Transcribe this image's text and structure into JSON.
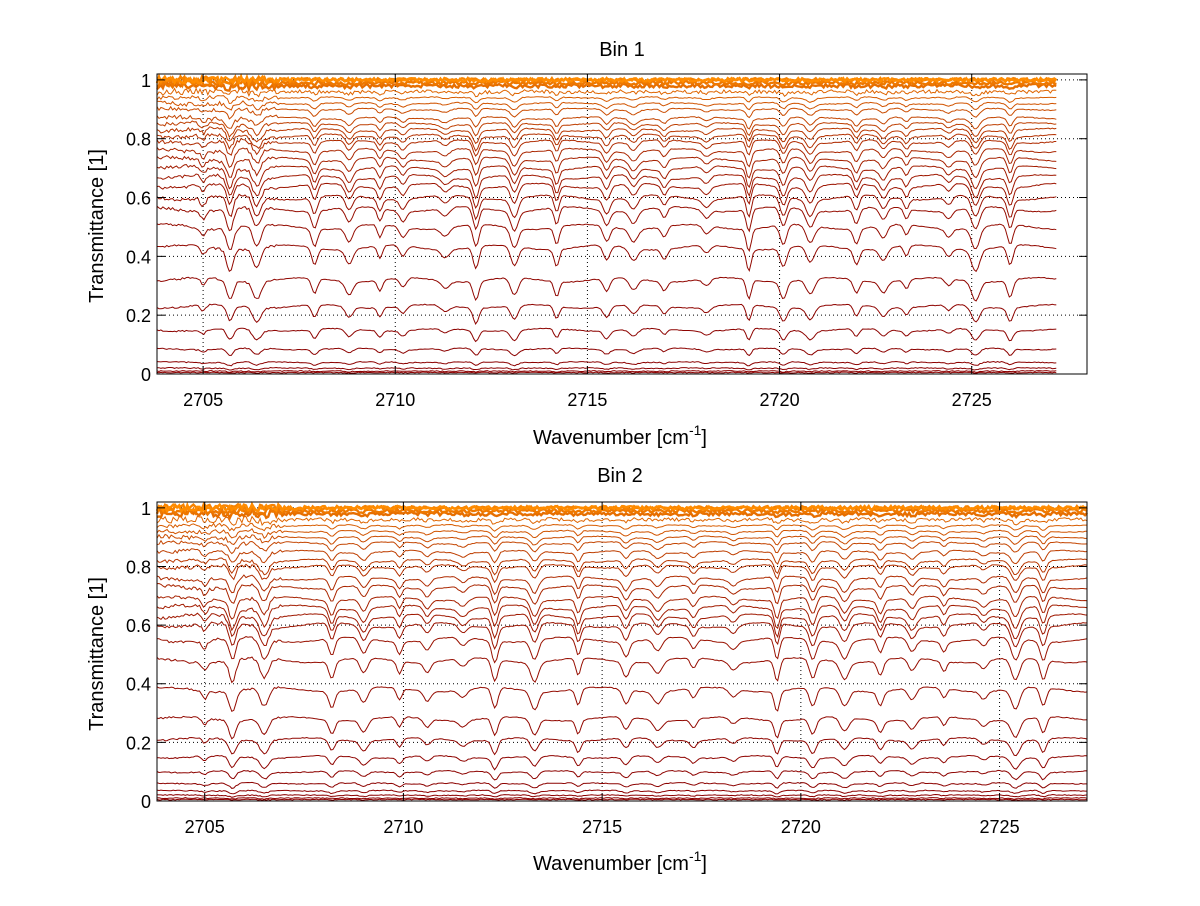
{
  "chart_data": [
    {
      "type": "line",
      "title": "Bin 1",
      "xlabel": "Wavenumber [cm",
      "xlabel_sup": "-1",
      "xlabel_end": "]",
      "ylabel": "Transmittance [1]",
      "xlim": [
        2703.8,
        2728.0
      ],
      "ylim": [
        0,
        1.02
      ],
      "x_ticks": [
        2705,
        2710,
        2715,
        2720,
        2725
      ],
      "y_ticks": [
        0,
        0.2,
        0.4,
        0.6,
        0.8,
        1
      ],
      "x_tick_labels": [
        "2705",
        "2710",
        "2715",
        "2720",
        "2725"
      ],
      "y_tick_labels": [
        "0",
        "0.2",
        "0.4",
        "0.6",
        "0.8",
        "1"
      ],
      "grid": true,
      "data_x_end": 2727.2,
      "series_color_range": [
        "#8b0000",
        "#ff8c00"
      ],
      "series_levels": [
        0.005,
        0.01,
        0.02,
        0.04,
        0.085,
        0.15,
        0.23,
        0.32,
        0.43,
        0.5,
        0.56,
        0.6,
        0.64,
        0.67,
        0.7,
        0.73,
        0.76,
        0.79,
        0.81,
        0.83,
        0.85,
        0.87,
        0.9,
        0.92,
        0.94,
        0.96,
        0.98,
        0.99,
        1.0,
        1.0
      ],
      "absorption_lines_x": [
        2705.0,
        2705.7,
        2706.4,
        2707.9,
        2708.8,
        2709.6,
        2710.2,
        2711.3,
        2712.1,
        2713.1,
        2714.2,
        2715.5,
        2716.2,
        2717.0,
        2718.1,
        2719.2,
        2720.1,
        2720.8,
        2722.0,
        2722.7,
        2723.3,
        2724.4,
        2725.1,
        2726.0
      ]
    },
    {
      "type": "line",
      "title": "Bin 2",
      "xlabel": "Wavenumber [cm",
      "xlabel_sup": "-1",
      "xlabel_end": "]",
      "ylabel": "Transmittance [1]",
      "xlim": [
        2703.8,
        2727.2
      ],
      "ylim": [
        0,
        1.02
      ],
      "x_ticks": [
        2705,
        2710,
        2715,
        2720,
        2725
      ],
      "y_ticks": [
        0,
        0.2,
        0.4,
        0.6,
        0.8,
        1
      ],
      "x_tick_labels": [
        "2705",
        "2710",
        "2715",
        "2720",
        "2725"
      ],
      "y_tick_labels": [
        "0",
        "0.2",
        "0.4",
        "0.6",
        "0.8",
        "1"
      ],
      "grid": true,
      "data_x_end": 2727.2,
      "series_color_range": [
        "#8b0000",
        "#ff8c00"
      ],
      "series_levels": [
        0.005,
        0.01,
        0.02,
        0.035,
        0.06,
        0.1,
        0.15,
        0.21,
        0.28,
        0.38,
        0.48,
        0.55,
        0.6,
        0.63,
        0.66,
        0.69,
        0.73,
        0.76,
        0.8,
        0.82,
        0.85,
        0.88,
        0.9,
        0.92,
        0.94,
        0.96,
        0.98,
        0.99,
        1.0,
        1.0
      ],
      "absorption_lines_x": [
        2705.0,
        2705.7,
        2706.5,
        2708.2,
        2709.0,
        2709.9,
        2710.6,
        2711.5,
        2712.3,
        2713.3,
        2714.4,
        2715.6,
        2716.4,
        2717.3,
        2718.3,
        2719.4,
        2720.3,
        2721.1,
        2722.0,
        2722.8,
        2723.6,
        2724.6,
        2725.4,
        2726.1
      ]
    }
  ]
}
